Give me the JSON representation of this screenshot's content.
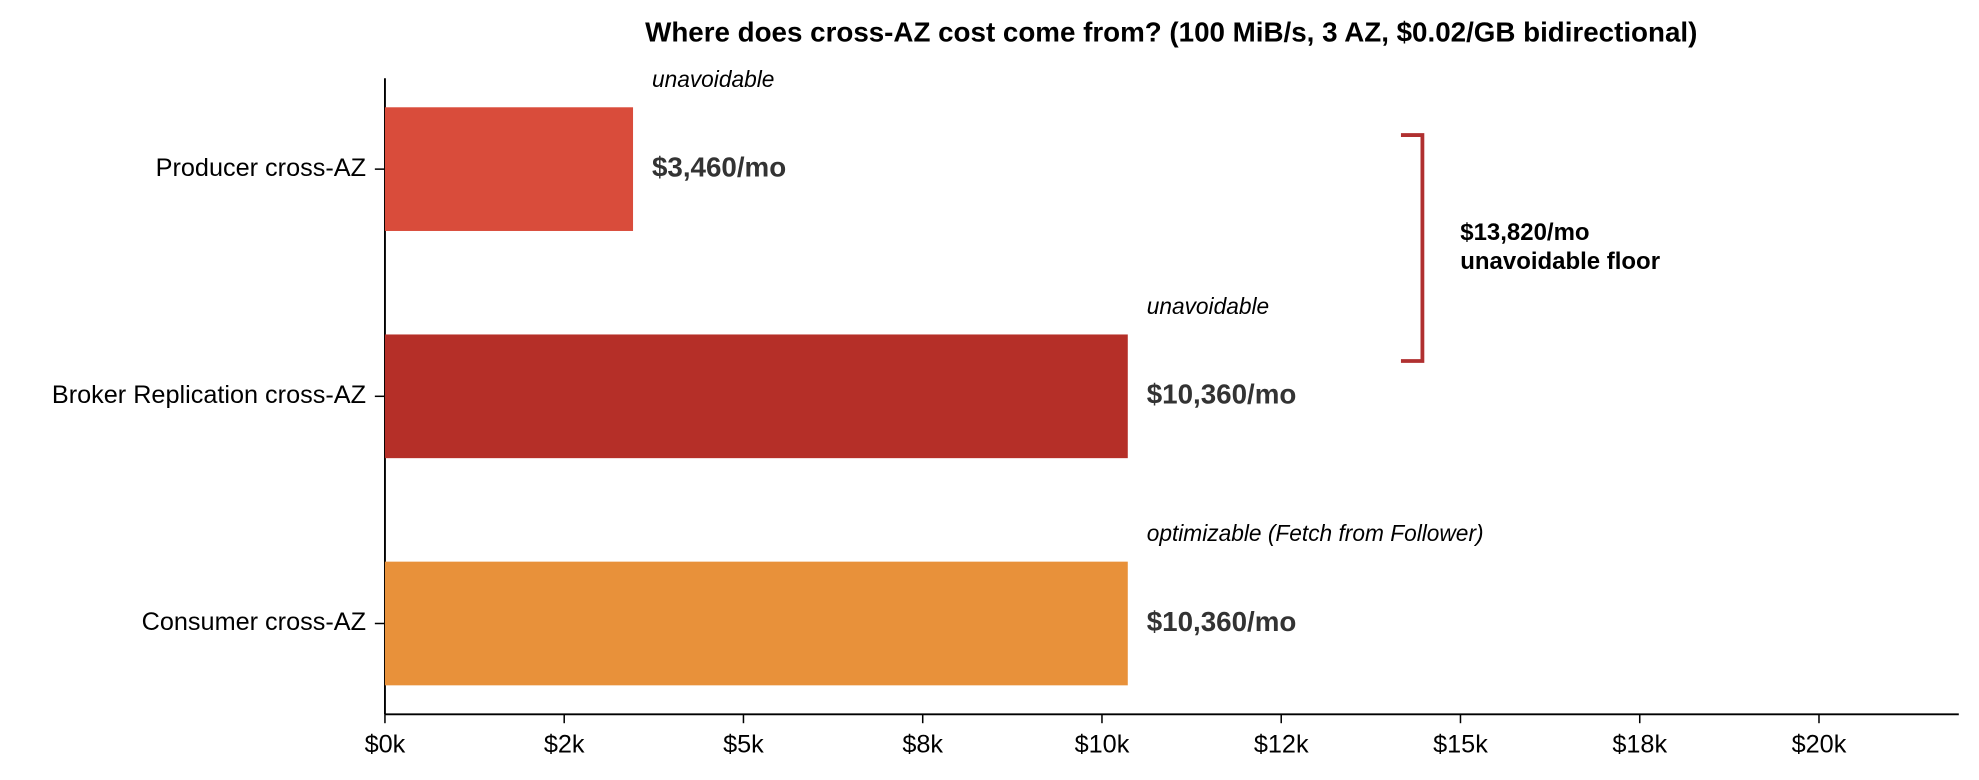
{
  "chart_data": {
    "type": "bar",
    "orientation": "horizontal",
    "title": "Where does cross-AZ cost come from?  (100 MiB/s, 3 AZ, $0.02/GB bidirectional)",
    "categories": [
      "Producer cross-AZ",
      "Broker Replication cross-AZ",
      "Consumer cross-AZ"
    ],
    "values": [
      3460,
      10360,
      10360
    ],
    "value_labels": [
      "$3,460/mo",
      "$10,360/mo",
      "$10,360/mo"
    ],
    "colors": [
      "#d94c3b",
      "#b52f28",
      "#e8913a"
    ],
    "annotations": [
      {
        "text": "unavoidable",
        "color": "#b03030"
      },
      {
        "text": "unavoidable",
        "color": "#b03030"
      },
      {
        "text": "optimizable (Fetch from Follower)",
        "color": "#808080"
      }
    ],
    "bracket": {
      "lines": [
        "$13,820/mo",
        "unavoidable floor"
      ],
      "color": "#b03030"
    },
    "xlim": [
      0,
      21950
    ],
    "xticks": [
      {
        "value": 0,
        "label": "$0k"
      },
      {
        "value": 2500,
        "label": "$2k"
      },
      {
        "value": 5000,
        "label": "$5k"
      },
      {
        "value": 7500,
        "label": "$8k"
      },
      {
        "value": 10000,
        "label": "$10k"
      },
      {
        "value": 12500,
        "label": "$12k"
      },
      {
        "value": 15000,
        "label": "$15k"
      },
      {
        "value": 17500,
        "label": "$18k"
      },
      {
        "value": 20000,
        "label": "$20k"
      }
    ],
    "grid": false
  }
}
